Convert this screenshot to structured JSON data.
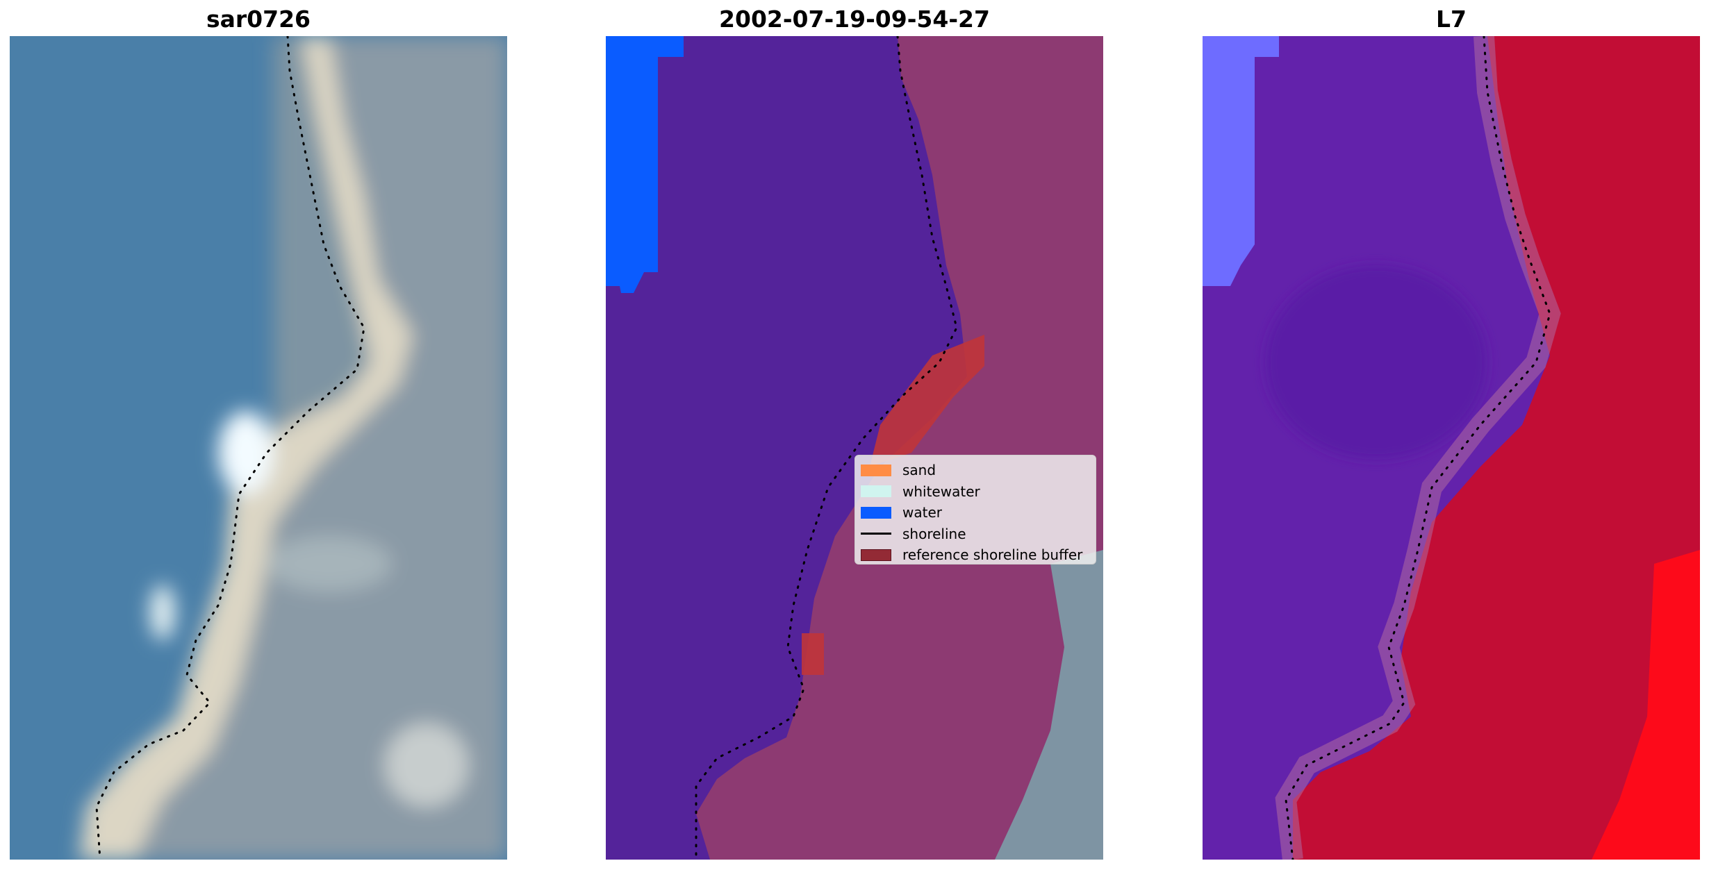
{
  "panels": [
    {
      "title": "sar0726",
      "kind": "rgb"
    },
    {
      "title": "2002-07-19-09-54-27",
      "kind": "classified"
    },
    {
      "title": "L7",
      "kind": "index"
    }
  ],
  "legend": {
    "items": [
      {
        "label": "sand",
        "color": "#ff8c45",
        "shape": "patch"
      },
      {
        "label": "whitewater",
        "color": "#d0f4ef",
        "shape": "patch"
      },
      {
        "label": "water",
        "color": "#0a5cff",
        "shape": "patch"
      },
      {
        "label": "shoreline",
        "color": "#000000",
        "shape": "line"
      },
      {
        "label": "reference shoreline buffer",
        "color": "#932a35",
        "shape": "patch"
      }
    ]
  },
  "colors": {
    "water_rgb": "#4a7fa8",
    "sand_rgb": "#dcd6c4",
    "land_rgb": "#7e94a3",
    "class_water_body": "#54239a",
    "class_water_blue": "#0a5cff",
    "class_land": "#8d3a72",
    "class_buffer": "#c0353a",
    "index_water": "#6322ab",
    "index_land": "#c20d35"
  }
}
